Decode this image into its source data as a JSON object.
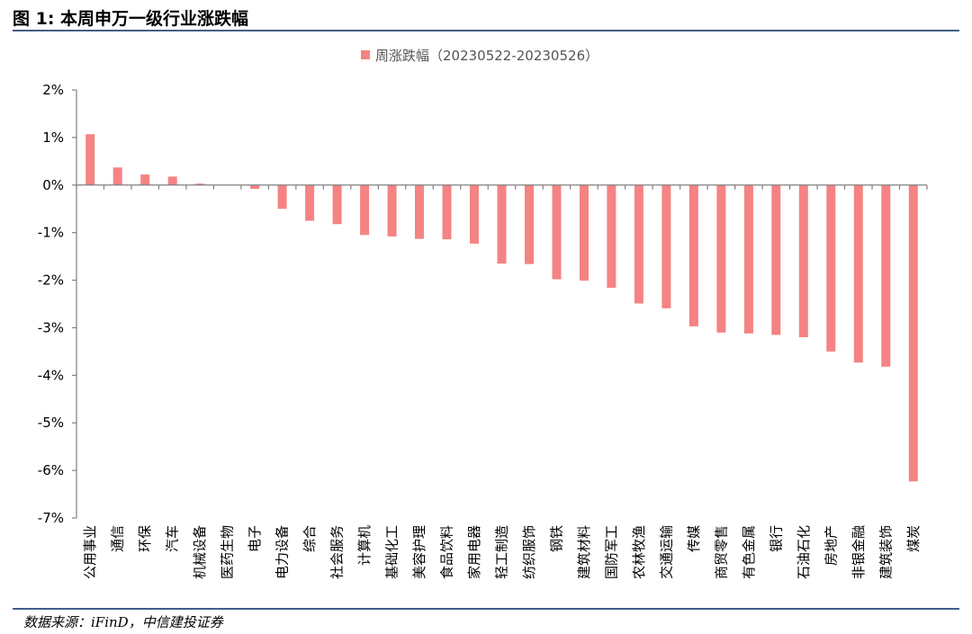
{
  "figure": {
    "title": "图 1: 本周申万一级行业涨跌幅",
    "source": "数据来源：iFinD，中信建投证券"
  },
  "chart_data": {
    "type": "bar",
    "legend": {
      "position": "top-center"
    },
    "grid": false,
    "ylim": [
      -7,
      2
    ],
    "yticks": [
      2,
      1,
      0,
      -1,
      -2,
      -3,
      -4,
      -5,
      -6,
      -7
    ],
    "ytick_labels": [
      "2%",
      "1%",
      "0%",
      "-1%",
      "-2%",
      "-3%",
      "-4%",
      "-5%",
      "-6%",
      "-7%"
    ],
    "bar_color": "#f58383",
    "axis_color": "#808080",
    "categories": [
      "公用事业",
      "通信",
      "环保",
      "汽车",
      "机械设备",
      "医药生物",
      "电子",
      "电力设备",
      "综合",
      "社会服务",
      "计算机",
      "基础化工",
      "美容护理",
      "食品饮料",
      "家用电器",
      "轻工制造",
      "纺织服饰",
      "钢铁",
      "建筑材料",
      "国防军工",
      "农林牧渔",
      "交通运输",
      "传媒",
      "商贸零售",
      "有色金属",
      "银行",
      "石油石化",
      "房地产",
      "非银金融",
      "建筑装饰",
      "煤炭"
    ],
    "series": [
      {
        "name": "周涨跌幅（20230522-20230526）",
        "values": [
          1.07,
          0.37,
          0.22,
          0.18,
          0.03,
          0.0,
          -0.08,
          -0.5,
          -0.75,
          -0.82,
          -1.05,
          -1.08,
          -1.13,
          -1.14,
          -1.23,
          -1.65,
          -1.66,
          -1.98,
          -2.01,
          -2.16,
          -2.49,
          -2.59,
          -2.97,
          -3.1,
          -3.12,
          -3.15,
          -3.2,
          -3.5,
          -3.73,
          -3.82,
          -6.23
        ]
      }
    ]
  }
}
